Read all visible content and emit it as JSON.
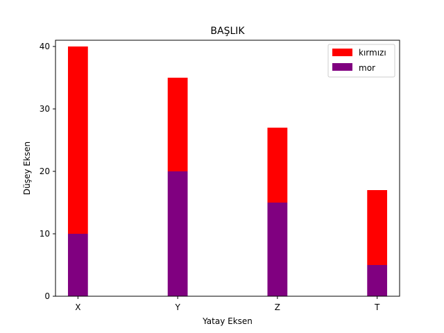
{
  "chart_data": {
    "type": "bar",
    "stacked": true,
    "title": "BAŞLIK",
    "xlabel": "Yatay Eksen",
    "ylabel": "Düşey Eksen",
    "categories": [
      "X",
      "Y",
      "Z",
      "T"
    ],
    "series": [
      {
        "name": "mor",
        "color": "#800080",
        "values": [
          10,
          20,
          15,
          5
        ]
      },
      {
        "name": "kırmızı",
        "color": "#ff0000",
        "values": [
          30,
          15,
          12,
          12
        ]
      }
    ],
    "ylim": [
      0,
      41
    ],
    "yticks": [
      0,
      10,
      20,
      30,
      40
    ],
    "legend": {
      "position": "top-right",
      "order": [
        "kırmızı",
        "mor"
      ]
    },
    "grid": false
  }
}
